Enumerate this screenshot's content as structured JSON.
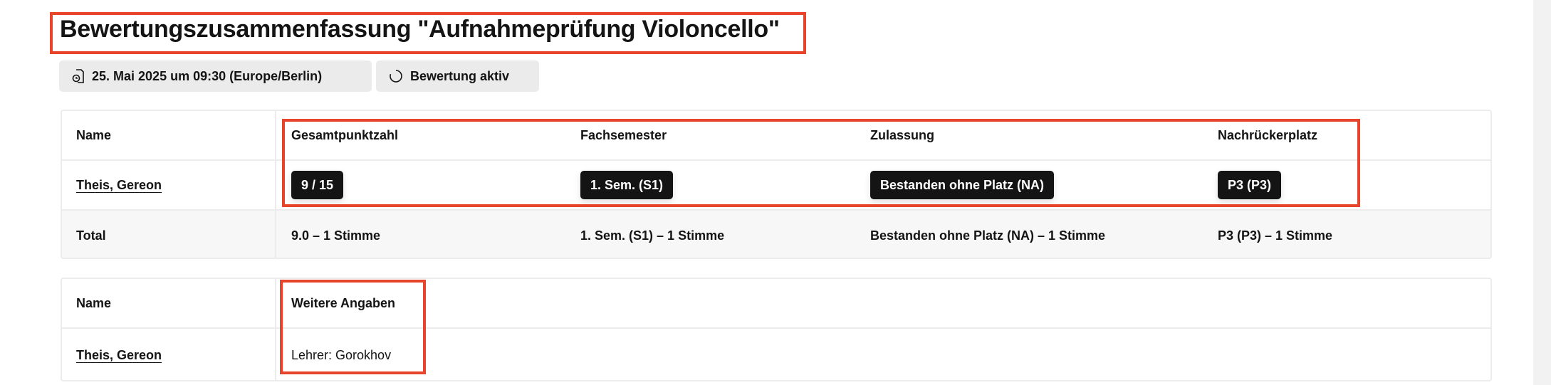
{
  "title": "Bewertungszusammenfassung \"Aufnahmeprüfung Violoncello\"",
  "chips": [
    {
      "icon": "document-clock-icon",
      "label": "25. Mai 2025 um 09:30 (Europe/Berlin)"
    },
    {
      "icon": "loading-circle-icon",
      "label": "Bewertung aktiv"
    }
  ],
  "table1": {
    "headers": [
      "Name",
      "Gesamtpunktzahl",
      "Fachsemester",
      "Zulassung",
      "Nachrückerplatz"
    ],
    "rows": [
      {
        "name": "Theis, Gereon",
        "values": [
          "9 / 15",
          "1. Sem. (S1)",
          "Bestanden ohne Platz (NA)",
          "P3 (P3)"
        ]
      }
    ],
    "total": {
      "label": "Total",
      "values": [
        "9.0 – 1 Stimme",
        "1. Sem. (S1) – 1 Stimme",
        "Bestanden ohne Platz (NA) – 1 Stimme",
        "P3 (P3) – 1 Stimme"
      ]
    }
  },
  "table2": {
    "headers": [
      "Name",
      "Weitere Angaben"
    ],
    "rows": [
      {
        "name": "Theis, Gereon",
        "values": [
          "Lehrer: Gorokhov"
        ]
      }
    ]
  },
  "colors": {
    "highlight": "#e8432b",
    "badge": "#141414",
    "chip": "#ebebeb"
  }
}
